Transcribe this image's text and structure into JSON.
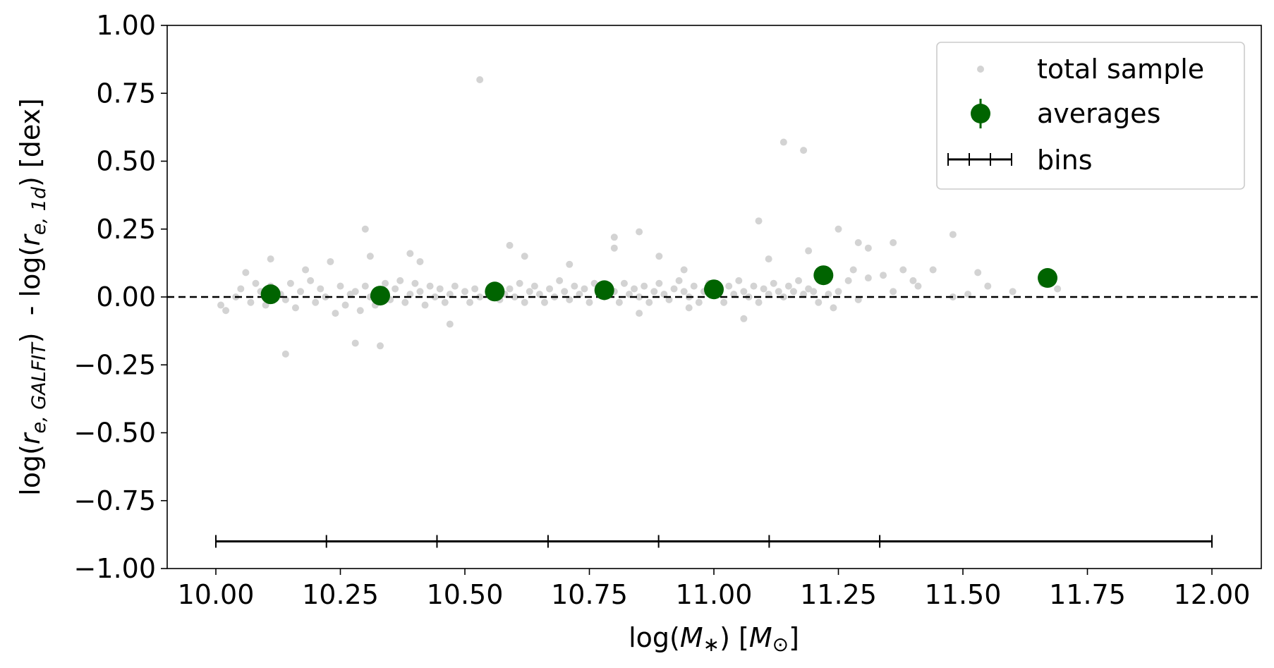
{
  "chart_data": {
    "type": "scatter",
    "xlabel": "log(M∗) [M⊙]",
    "xlabel_parts": {
      "pre": "log(",
      "var": "M",
      "sub": "∗",
      "mid": ") [",
      "unit": "M",
      "unit_sub": "⊙",
      "post": "]"
    },
    "ylabel": "log(re, GALFIT)  - log(re, 1d) [dex]",
    "ylabel_parts": {
      "a_pre": "log(",
      "a_var": "r",
      "a_sub": "e, GALFIT",
      "a_post": ")",
      "sep": "  - log(",
      "b_var": "r",
      "b_sub": "e, 1d",
      "b_post": ") [dex]"
    },
    "xlim": [
      9.8,
      12.2
    ],
    "ylim": [
      -1.0,
      1.0
    ],
    "x_ticks": [
      10.0,
      10.25,
      10.5,
      10.75,
      11.0,
      11.25,
      11.5,
      11.75,
      12.0
    ],
    "x_tick_labels": [
      "10.00",
      "10.25",
      "10.50",
      "10.75",
      "11.00",
      "11.25",
      "11.50",
      "11.75",
      "12.00"
    ],
    "y_ticks": [
      1.0,
      0.75,
      0.5,
      0.25,
      0.0,
      -0.25,
      -0.5,
      -0.75,
      -1.0
    ],
    "y_tick_labels": [
      "1.00",
      "0.75",
      "0.50",
      "0.25",
      "0.00",
      "−0.25",
      "−0.50",
      "−0.75",
      "−1.00"
    ],
    "reference_line_y": 0.0,
    "grid": false,
    "legend_position": "top-right",
    "colors": {
      "sample": "#d3d3d3",
      "averages": "#006400",
      "bins": "#000000"
    },
    "legend": [
      {
        "label": "total sample",
        "marker": "dot"
      },
      {
        "label": "averages",
        "marker": "errorbar"
      },
      {
        "label": "bins",
        "marker": "bar"
      }
    ],
    "series": [
      {
        "name": "total sample",
        "points": [
          [
            10.01,
            -0.03
          ],
          [
            10.02,
            -0.05
          ],
          [
            10.04,
            0.0
          ],
          [
            10.05,
            0.03
          ],
          [
            10.06,
            0.09
          ],
          [
            10.07,
            -0.02
          ],
          [
            10.08,
            0.05
          ],
          [
            10.09,
            0.02
          ],
          [
            10.1,
            -0.03
          ],
          [
            10.11,
            0.04
          ],
          [
            10.12,
            0.0
          ],
          [
            10.13,
            0.01
          ],
          [
            10.14,
            -0.01
          ],
          [
            10.15,
            0.05
          ],
          [
            10.16,
            -0.04
          ],
          [
            10.17,
            0.02
          ],
          [
            10.18,
            0.1
          ],
          [
            10.19,
            0.06
          ],
          [
            10.2,
            -0.02
          ],
          [
            10.21,
            0.03
          ],
          [
            10.22,
            0.0
          ],
          [
            10.23,
            0.13
          ],
          [
            10.24,
            -0.06
          ],
          [
            10.25,
            0.04
          ],
          [
            10.26,
            -0.03
          ],
          [
            10.27,
            0.01
          ],
          [
            10.28,
            0.02
          ],
          [
            10.29,
            -0.05
          ],
          [
            10.3,
            0.04
          ],
          [
            10.31,
            0.0
          ],
          [
            10.32,
            -0.03
          ],
          [
            10.33,
            0.02
          ],
          [
            10.34,
            0.05
          ],
          [
            10.35,
            -0.01
          ],
          [
            10.36,
            0.03
          ],
          [
            10.37,
            0.06
          ],
          [
            10.38,
            -0.02
          ],
          [
            10.39,
            0.01
          ],
          [
            10.4,
            0.05
          ],
          [
            10.41,
            0.02
          ],
          [
            10.42,
            -0.03
          ],
          [
            10.43,
            0.04
          ],
          [
            10.44,
            0.0
          ],
          [
            10.45,
            0.03
          ],
          [
            10.46,
            -0.02
          ],
          [
            10.47,
            0.01
          ],
          [
            10.48,
            0.04
          ],
          [
            10.5,
            0.02
          ],
          [
            10.51,
            -0.02
          ],
          [
            10.52,
            0.03
          ],
          [
            10.53,
            0.0
          ],
          [
            10.55,
            0.02
          ],
          [
            10.56,
            0.04
          ],
          [
            10.57,
            -0.01
          ],
          [
            10.58,
            0.01
          ],
          [
            10.59,
            0.03
          ],
          [
            10.6,
            0.0
          ],
          [
            10.61,
            0.05
          ],
          [
            10.62,
            -0.02
          ],
          [
            10.63,
            0.02
          ],
          [
            10.64,
            0.04
          ],
          [
            10.65,
            0.01
          ],
          [
            10.66,
            -0.02
          ],
          [
            10.67,
            0.03
          ],
          [
            10.68,
            0.0
          ],
          [
            10.69,
            0.06
          ],
          [
            10.7,
            0.02
          ],
          [
            10.71,
            -0.01
          ],
          [
            10.72,
            0.04
          ],
          [
            10.73,
            0.01
          ],
          [
            10.74,
            0.03
          ],
          [
            10.75,
            -0.02
          ],
          [
            10.76,
            0.05
          ],
          [
            10.77,
            0.02
          ],
          [
            10.78,
            0.0
          ],
          [
            10.79,
            0.04
          ],
          [
            10.8,
            0.02
          ],
          [
            10.81,
            -0.02
          ],
          [
            10.82,
            0.05
          ],
          [
            10.83,
            0.01
          ],
          [
            10.84,
            0.03
          ],
          [
            10.85,
            0.0
          ],
          [
            10.86,
            0.04
          ],
          [
            10.87,
            -0.02
          ],
          [
            10.88,
            0.02
          ],
          [
            10.89,
            0.05
          ],
          [
            10.9,
            0.01
          ],
          [
            10.91,
            -0.01
          ],
          [
            10.92,
            0.03
          ],
          [
            10.93,
            0.06
          ],
          [
            10.94,
            0.02
          ],
          [
            10.95,
            0.0
          ],
          [
            10.96,
            0.04
          ],
          [
            10.97,
            -0.02
          ],
          [
            10.98,
            0.02
          ],
          [
            10.99,
            0.05
          ],
          [
            11.0,
            0.01
          ],
          [
            11.01,
            0.03
          ],
          [
            11.02,
            -0.02
          ],
          [
            11.03,
            0.04
          ],
          [
            11.04,
            0.01
          ],
          [
            11.05,
            0.06
          ],
          [
            11.06,
            0.02
          ],
          [
            11.07,
            0.0
          ],
          [
            11.08,
            0.04
          ],
          [
            11.09,
            -0.02
          ],
          [
            11.1,
            0.03
          ],
          [
            11.11,
            0.01
          ],
          [
            11.12,
            0.05
          ],
          [
            11.13,
            0.02
          ],
          [
            11.14,
            0.0
          ],
          [
            11.15,
            0.04
          ],
          [
            11.16,
            0.02
          ],
          [
            11.17,
            0.06
          ],
          [
            11.18,
            0.01
          ],
          [
            11.19,
            0.03
          ],
          [
            11.2,
            0.02
          ],
          [
            11.21,
            -0.02
          ],
          [
            11.23,
            0.01
          ],
          [
            11.24,
            -0.04
          ],
          [
            11.25,
            0.02
          ],
          [
            11.27,
            0.06
          ],
          [
            11.28,
            0.1
          ],
          [
            11.29,
            -0.01
          ],
          [
            11.31,
            0.07
          ],
          [
            11.34,
            0.08
          ],
          [
            11.36,
            0.02
          ],
          [
            11.38,
            0.1
          ],
          [
            11.4,
            0.06
          ],
          [
            11.41,
            0.04
          ],
          [
            11.44,
            0.1
          ],
          [
            11.48,
            0.0
          ],
          [
            11.51,
            0.01
          ],
          [
            11.55,
            0.04
          ],
          [
            11.6,
            0.02
          ],
          [
            11.66,
            0.05
          ],
          [
            11.69,
            0.03
          ],
          [
            10.11,
            0.14
          ],
          [
            10.14,
            -0.21
          ],
          [
            10.28,
            -0.17
          ],
          [
            10.3,
            0.25
          ],
          [
            10.31,
            0.15
          ],
          [
            10.33,
            -0.18
          ],
          [
            10.39,
            0.16
          ],
          [
            10.41,
            0.13
          ],
          [
            10.47,
            -0.1
          ],
          [
            10.53,
            0.8
          ],
          [
            10.59,
            0.19
          ],
          [
            10.62,
            0.15
          ],
          [
            10.71,
            0.12
          ],
          [
            10.8,
            0.22
          ],
          [
            10.8,
            0.18
          ],
          [
            10.85,
            0.24
          ],
          [
            10.89,
            0.15
          ],
          [
            10.94,
            0.1
          ],
          [
            11.09,
            0.28
          ],
          [
            11.11,
            0.14
          ],
          [
            11.14,
            0.57
          ],
          [
            11.18,
            0.54
          ],
          [
            11.19,
            0.17
          ],
          [
            11.25,
            0.25
          ],
          [
            11.29,
            0.2
          ],
          [
            11.31,
            0.18
          ],
          [
            11.36,
            0.2
          ],
          [
            11.48,
            0.23
          ],
          [
            11.53,
            0.09
          ],
          [
            11.06,
            -0.08
          ],
          [
            10.85,
            -0.06
          ],
          [
            10.95,
            -0.04
          ]
        ]
      },
      {
        "name": "averages",
        "points": [
          [
            10.11,
            0.01
          ],
          [
            10.33,
            0.005
          ],
          [
            10.56,
            0.02
          ],
          [
            10.78,
            0.025
          ],
          [
            11.0,
            0.028
          ],
          [
            11.22,
            0.08
          ],
          [
            11.67,
            0.07
          ]
        ]
      }
    ],
    "bins": {
      "y": -0.9,
      "edges": [
        10.0,
        10.222,
        10.444,
        10.667,
        10.889,
        11.111,
        11.333,
        12.0
      ]
    }
  }
}
